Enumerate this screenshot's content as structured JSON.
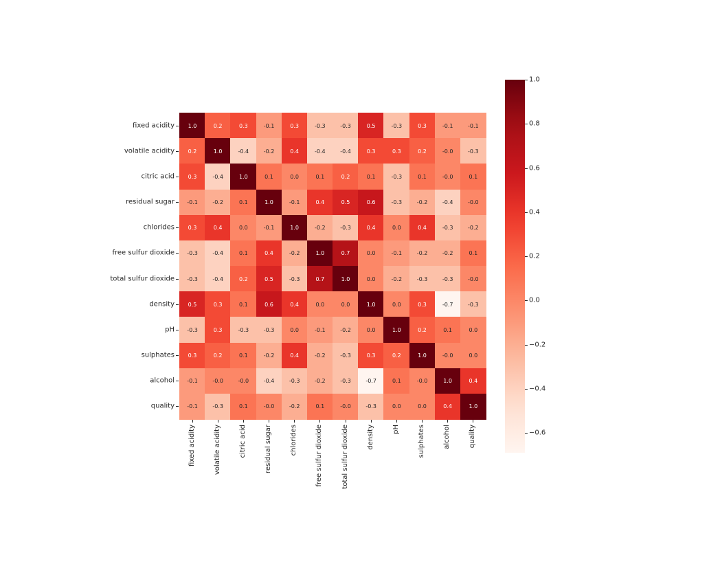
{
  "chart_data": {
    "type": "heatmap",
    "title": "",
    "xlabel": "",
    "ylabel": "",
    "colormap": "Reds",
    "annotated": true,
    "annotation_format": "0.1f",
    "labels": [
      "fixed acidity",
      "volatile acidity",
      "citric acid",
      "residual sugar",
      "chlorides",
      "free sulfur dioxide",
      "total sulfur dioxide",
      "density",
      "pH",
      "sulphates",
      "alcohol",
      "quality"
    ],
    "matrix": [
      [
        "1.0",
        "0.2",
        "0.3",
        "-0.1",
        "0.3",
        "-0.3",
        "-0.3",
        "0.5",
        "-0.3",
        "0.3",
        "-0.1",
        "-0.1"
      ],
      [
        "0.2",
        "1.0",
        "-0.4",
        "-0.2",
        "0.4",
        "-0.4",
        "-0.4",
        "0.3",
        "0.3",
        "0.2",
        "-0.0",
        "-0.3"
      ],
      [
        "0.3",
        "-0.4",
        "1.0",
        "0.1",
        "0.0",
        "0.1",
        "0.2",
        "0.1",
        "-0.3",
        "0.1",
        "-0.0",
        "0.1"
      ],
      [
        "-0.1",
        "-0.2",
        "0.1",
        "1.0",
        "-0.1",
        "0.4",
        "0.5",
        "0.6",
        "-0.3",
        "-0.2",
        "-0.4",
        "-0.0"
      ],
      [
        "0.3",
        "0.4",
        "0.0",
        "-0.1",
        "1.0",
        "-0.2",
        "-0.3",
        "0.4",
        "0.0",
        "0.4",
        "-0.3",
        "-0.2"
      ],
      [
        "-0.3",
        "-0.4",
        "0.1",
        "0.4",
        "-0.2",
        "1.0",
        "0.7",
        "0.0",
        "-0.1",
        "-0.2",
        "-0.2",
        "0.1"
      ],
      [
        "-0.3",
        "-0.4",
        "0.2",
        "0.5",
        "-0.3",
        "0.7",
        "1.0",
        "0.0",
        "-0.2",
        "-0.3",
        "-0.3",
        "-0.0"
      ],
      [
        "0.5",
        "0.3",
        "0.1",
        "0.6",
        "0.4",
        "0.0",
        "0.0",
        "1.0",
        "0.0",
        "0.3",
        "-0.7",
        "-0.3"
      ],
      [
        "-0.3",
        "0.3",
        "-0.3",
        "-0.3",
        "0.0",
        "-0.1",
        "-0.2",
        "0.0",
        "1.0",
        "0.2",
        "0.1",
        "0.0"
      ],
      [
        "0.3",
        "0.2",
        "0.1",
        "-0.2",
        "0.4",
        "-0.2",
        "-0.3",
        "0.3",
        "0.2",
        "1.0",
        "-0.0",
        "0.0"
      ],
      [
        "-0.1",
        "-0.0",
        "-0.0",
        "-0.4",
        "-0.3",
        "-0.2",
        "-0.3",
        "-0.7",
        "0.1",
        "-0.0",
        "1.0",
        "0.4"
      ],
      [
        "-0.1",
        "-0.3",
        "0.1",
        "-0.0",
        "-0.2",
        "0.1",
        "-0.0",
        "-0.3",
        "0.0",
        "0.0",
        "0.4",
        "1.0"
      ]
    ],
    "vmin": -0.69,
    "vmax": 1.0,
    "colorbar": {
      "ticks": [
        "1.0",
        "0.8",
        "0.6",
        "0.4",
        "0.2",
        "0.0",
        "−0.2",
        "−0.4",
        "−0.6"
      ],
      "tick_values": [
        1.0,
        0.8,
        0.6,
        0.4,
        0.2,
        0.0,
        -0.2,
        -0.4,
        -0.6
      ],
      "position": "right"
    },
    "colors": {
      "low": "#fff5f0",
      "mid": "#fb6a4a",
      "high": "#67000d"
    }
  }
}
